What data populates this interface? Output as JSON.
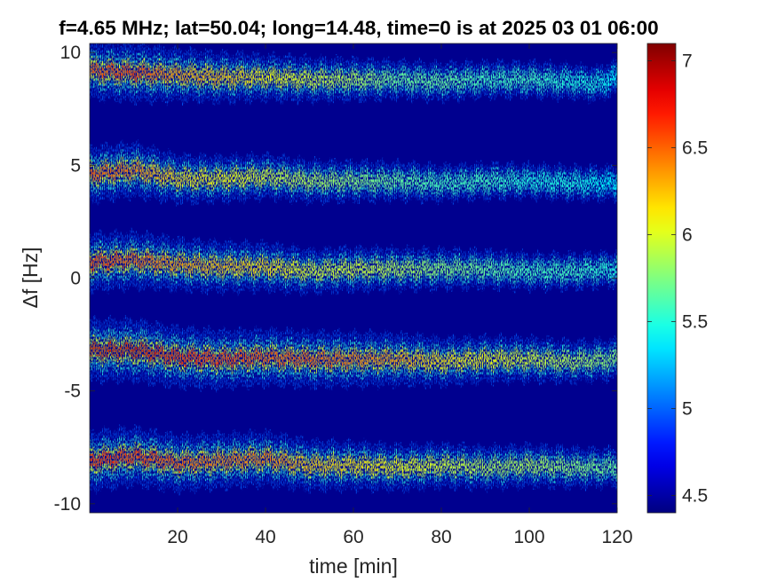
{
  "chart_data": {
    "type": "heatmap",
    "title": "f=4.65 MHz;  lat=50.04; long=14.48, time=0 is at 2025 03 01 06:00",
    "xlabel": "time [min]",
    "ylabel": "Δf [Hz]",
    "xlim": [
      0,
      120
    ],
    "ylim": [
      -10.4,
      10.4
    ],
    "xticks": [
      20,
      40,
      60,
      80,
      100,
      120
    ],
    "xtick_labels": [
      "20",
      "40",
      "60",
      "80",
      "100",
      "120"
    ],
    "yticks": [
      -10,
      -5,
      0,
      5,
      10
    ],
    "ytick_labels": [
      "-10",
      "-5",
      "0",
      "5",
      "10"
    ],
    "colorbar": {
      "range": [
        4.4,
        7.1
      ],
      "ticks": [
        4.5,
        5,
        5.5,
        6,
        6.5,
        7
      ],
      "tick_labels": [
        "4.5",
        "5",
        "5.5",
        "6",
        "6.5",
        "7"
      ],
      "colormap": "jet"
    },
    "background_value": 4.4,
    "series": [
      {
        "time": [
          0,
          10,
          20,
          30,
          40,
          50,
          60,
          70,
          80,
          90,
          100,
          110,
          115,
          120
        ],
        "df_center": [
          9.2,
          9.1,
          9.0,
          8.9,
          8.9,
          8.8,
          8.8,
          8.8,
          8.7,
          8.8,
          8.8,
          8.7,
          8.6,
          8.9
        ],
        "intensity": [
          6.6,
          6.7,
          6.4,
          6.3,
          6.1,
          6.0,
          5.9,
          5.7,
          5.7,
          5.6,
          5.6,
          5.5,
          5.5,
          5.4
        ]
      },
      {
        "time": [
          0,
          10,
          20,
          30,
          40,
          50,
          60,
          70,
          80,
          90,
          100,
          110,
          120
        ],
        "df_center": [
          4.6,
          4.8,
          4.4,
          4.4,
          4.5,
          4.3,
          4.3,
          4.3,
          4.2,
          4.3,
          4.3,
          4.2,
          4.2
        ],
        "intensity": [
          6.6,
          6.5,
          6.2,
          6.1,
          6.0,
          5.9,
          5.8,
          5.7,
          5.6,
          5.6,
          5.5,
          5.5,
          5.4
        ]
      },
      {
        "time": [
          0,
          10,
          20,
          30,
          40,
          50,
          60,
          70,
          80,
          90,
          100,
          110,
          120
        ],
        "df_center": [
          0.7,
          0.8,
          0.6,
          0.5,
          0.5,
          0.3,
          0.4,
          0.4,
          0.4,
          0.4,
          0.3,
          0.3,
          0.4
        ],
        "intensity": [
          6.7,
          6.6,
          6.4,
          6.3,
          6.2,
          6.0,
          6.0,
          5.9,
          5.8,
          5.7,
          5.6,
          5.6,
          5.5
        ]
      },
      {
        "time": [
          0,
          10,
          20,
          30,
          40,
          50,
          60,
          70,
          80,
          90,
          100,
          110,
          120
        ],
        "df_center": [
          -3.2,
          -3.2,
          -3.5,
          -3.6,
          -3.5,
          -3.6,
          -3.6,
          -3.6,
          -3.7,
          -3.6,
          -3.6,
          -3.7,
          -3.6
        ],
        "intensity": [
          6.9,
          6.9,
          6.8,
          6.7,
          6.6,
          6.6,
          6.5,
          6.4,
          6.2,
          6.1,
          6.0,
          5.9,
          5.8
        ]
      },
      {
        "time": [
          0,
          10,
          20,
          30,
          40,
          50,
          60,
          70,
          80,
          90,
          100,
          110,
          120
        ],
        "df_center": [
          -8.1,
          -7.9,
          -8.2,
          -8.1,
          -8.0,
          -8.3,
          -8.3,
          -8.4,
          -8.3,
          -8.4,
          -8.3,
          -8.4,
          -8.4
        ],
        "intensity": [
          6.8,
          6.7,
          6.6,
          6.5,
          6.5,
          6.3,
          6.2,
          6.1,
          6.0,
          5.9,
          5.9,
          5.8,
          5.7
        ]
      }
    ]
  }
}
